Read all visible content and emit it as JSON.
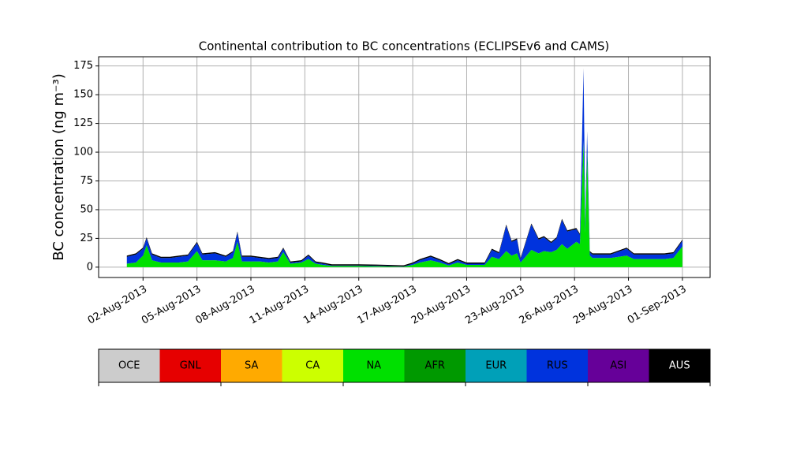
{
  "chart_data": {
    "type": "stacked_area",
    "title": "Continental contribution to BC concentrations (ECLIPSEv6 and CAMS)",
    "y_label": "BC concentration (ng m⁻³)",
    "x": [
      1.1,
      1.6,
      2.0,
      2.2,
      2.5,
      3.0,
      3.5,
      4.0,
      4.5,
      5.0,
      5.3,
      6.0,
      6.6,
      7.0,
      7.25,
      7.5,
      8.0,
      8.5,
      9.0,
      9.5,
      9.8,
      10.2,
      10.8,
      11.2,
      11.6,
      12.0,
      12.5,
      14.0,
      15.0,
      16.0,
      16.5,
      17.0,
      17.4,
      18.0,
      18.5,
      19.0,
      19.5,
      20.0,
      21.0,
      21.4,
      21.8,
      22.2,
      22.5,
      22.8,
      23.0,
      23.6,
      24.0,
      24.3,
      24.7,
      25.0,
      25.3,
      25.6,
      26.1,
      26.3,
      26.5,
      26.6,
      26.7,
      26.85,
      27.0,
      28.0,
      28.9,
      29.3,
      30.0,
      31.0,
      31.5,
      32.0
    ],
    "series": [
      {
        "name": "OCE",
        "color": "#cccccc",
        "values": [
          0,
          0,
          0,
          0,
          0,
          0,
          0,
          0,
          0,
          0,
          0,
          0,
          0,
          0,
          0,
          0,
          0,
          0,
          0,
          0,
          0,
          0,
          0,
          0,
          0,
          0,
          0,
          0,
          0,
          0,
          0,
          0,
          0,
          0,
          0,
          0,
          0,
          0,
          0,
          0,
          0,
          0,
          0,
          0,
          0,
          0,
          0,
          0,
          0,
          0,
          0,
          0,
          0,
          0,
          0,
          0,
          0,
          0,
          0,
          0,
          0,
          0,
          0,
          0,
          0,
          0
        ]
      },
      {
        "name": "GNL",
        "color": "#e60000",
        "values": [
          0,
          0,
          0,
          0,
          0,
          0,
          0,
          0,
          0,
          0,
          0,
          0,
          0,
          0,
          0,
          0,
          0,
          0,
          0,
          0,
          0,
          0,
          0,
          0,
          0,
          0,
          0,
          0,
          0,
          0,
          0,
          0,
          0,
          0,
          0,
          0,
          0,
          0,
          0,
          0,
          0,
          0,
          0,
          0,
          0,
          0,
          0,
          0,
          0,
          0,
          0,
          0,
          0,
          0,
          0,
          0,
          0,
          0,
          0,
          0,
          0,
          0,
          0,
          0,
          0,
          0
        ]
      },
      {
        "name": "SA",
        "color": "#ffaa00",
        "values": [
          0,
          0,
          0,
          0,
          0,
          0,
          0,
          0,
          0,
          0,
          0,
          0,
          0,
          0,
          0,
          0,
          0,
          0,
          0,
          0,
          0,
          0,
          0,
          0,
          0,
          0,
          0,
          0,
          0,
          0,
          0,
          0,
          0,
          0,
          0,
          0,
          0,
          0,
          0,
          0,
          0,
          0,
          0,
          0,
          0,
          0,
          0,
          0,
          0,
          0,
          0,
          0,
          0,
          0,
          0,
          0,
          0,
          0,
          0,
          0,
          0,
          0,
          0,
          0,
          0,
          0
        ]
      },
      {
        "name": "CA",
        "color": "#ccff00",
        "values": [
          0,
          0,
          0,
          0,
          0,
          0,
          0,
          0,
          0,
          0,
          0,
          0,
          0,
          0,
          0,
          0,
          0,
          0,
          0,
          0,
          0,
          0,
          0,
          0,
          0,
          0,
          0,
          0,
          0,
          0,
          0,
          0,
          0,
          0,
          0,
          0,
          0,
          0,
          0,
          0,
          0,
          0,
          0,
          0,
          0,
          0,
          0,
          0,
          0,
          0,
          0,
          0,
          0,
          0,
          0,
          0,
          0,
          0,
          0,
          0,
          0,
          0,
          0,
          0,
          0,
          0
        ]
      },
      {
        "name": "NA",
        "color": "#00e000",
        "values": [
          3,
          4,
          10,
          19,
          6,
          4,
          4,
          4,
          5,
          14,
          6,
          6,
          5,
          8,
          22,
          5,
          5,
          5,
          4,
          5,
          13,
          3,
          4,
          7,
          3,
          2,
          1,
          1,
          0.8,
          0.5,
          0.4,
          2,
          4,
          6,
          4,
          1.5,
          4,
          2,
          2,
          9,
          7,
          14,
          10,
          12,
          4,
          15,
          12,
          14,
          13,
          15,
          20,
          16,
          22,
          20,
          110,
          30,
          100,
          10,
          8,
          8,
          10,
          7,
          7,
          7,
          8,
          18
        ]
      },
      {
        "name": "AFR",
        "color": "#009900",
        "values": [
          0,
          0,
          0,
          0,
          0,
          0,
          0,
          0,
          0,
          0,
          0,
          0,
          0,
          0,
          0,
          0,
          0,
          0,
          0,
          0,
          0,
          0,
          0,
          0,
          0,
          0,
          0,
          0,
          0,
          0,
          0,
          0,
          0,
          0,
          0,
          0,
          0,
          0,
          0,
          0,
          0,
          0,
          0,
          0,
          0,
          0,
          0,
          0,
          0,
          0,
          0,
          0,
          0,
          0,
          0,
          0,
          0,
          0,
          0,
          0,
          0,
          0,
          0,
          0,
          0,
          0
        ]
      },
      {
        "name": "EUR",
        "color": "#00a0b8",
        "values": [
          0,
          0,
          0,
          0,
          0,
          0,
          0,
          0,
          0,
          0,
          0,
          0,
          0,
          0,
          0,
          0,
          0,
          0,
          0,
          0,
          0,
          0,
          0,
          0,
          0,
          0,
          0,
          0,
          0,
          0,
          0,
          0,
          0,
          0,
          0,
          0,
          0,
          0,
          0,
          0,
          0,
          0,
          0,
          0,
          0,
          0,
          0,
          0,
          0,
          0,
          0,
          0,
          0,
          0,
          0,
          0,
          0,
          0,
          0,
          0,
          0,
          0,
          0,
          0,
          0,
          0
        ]
      },
      {
        "name": "RUS",
        "color": "#0033dd",
        "values": [
          6,
          7,
          6,
          6,
          5,
          4,
          4,
          5,
          5,
          7,
          5,
          6,
          4,
          5,
          8,
          4,
          4,
          3,
          3,
          3,
          3,
          1,
          1,
          3,
          1,
          1,
          0.5,
          0.5,
          0.4,
          0.3,
          0.2,
          1,
          2,
          3,
          2,
          1,
          2,
          1,
          1,
          6,
          5,
          22,
          12,
          12,
          3,
          22,
          12,
          12,
          8,
          10,
          21,
          15,
          11,
          8,
          62,
          8,
          17,
          3,
          3,
          3,
          6,
          4,
          4,
          4,
          4,
          5
        ]
      },
      {
        "name": "ASI",
        "color": "#660099",
        "values": [
          0,
          0,
          0,
          0,
          0,
          0,
          0,
          0,
          0,
          0,
          0,
          0,
          0,
          0,
          0,
          0,
          0,
          0,
          0,
          0,
          0,
          0,
          0,
          0,
          0,
          0,
          0,
          0,
          0,
          0,
          0,
          0,
          0,
          0,
          0,
          0,
          0,
          0,
          0,
          0,
          0,
          0,
          0,
          0,
          0,
          0,
          0,
          0,
          0,
          0,
          0,
          0,
          0,
          0,
          0,
          0,
          0,
          0,
          0,
          0,
          0,
          0,
          0,
          0,
          0,
          0
        ]
      },
      {
        "name": "AUS",
        "color": "#000000",
        "values": [
          1,
          1,
          1,
          1,
          1,
          1,
          1,
          1,
          1,
          1,
          1,
          1,
          1,
          1,
          1,
          1,
          1,
          1,
          1,
          1,
          1,
          1,
          1,
          1,
          1,
          1,
          1,
          1,
          1,
          1,
          1,
          1,
          1,
          1,
          1,
          1,
          1,
          1,
          1,
          1,
          1,
          1,
          1,
          1,
          1,
          1,
          1,
          1,
          1,
          1,
          1,
          1,
          1,
          1,
          1,
          1,
          1,
          1,
          1,
          1,
          1,
          1,
          1,
          1,
          1,
          1
        ]
      }
    ],
    "xlim": [
      -0.47,
      33.54
    ],
    "xticks": [
      {
        "value": 2,
        "label": "02-Aug-2013"
      },
      {
        "value": 5,
        "label": "05-Aug-2013"
      },
      {
        "value": 8,
        "label": "08-Aug-2013"
      },
      {
        "value": 11,
        "label": "11-Aug-2013"
      },
      {
        "value": 14,
        "label": "14-Aug-2013"
      },
      {
        "value": 17,
        "label": "17-Aug-2013"
      },
      {
        "value": 20,
        "label": "20-Aug-2013"
      },
      {
        "value": 23,
        "label": "23-Aug-2013"
      },
      {
        "value": 26,
        "label": "26-Aug-2013"
      },
      {
        "value": 29,
        "label": "29-Aug-2013"
      },
      {
        "value": 32,
        "label": "01-Sep-2013"
      }
    ],
    "ylim": [
      -9,
      183
    ],
    "yticks": [
      0,
      25,
      50,
      75,
      100,
      125,
      150,
      175
    ],
    "grid": true
  }
}
